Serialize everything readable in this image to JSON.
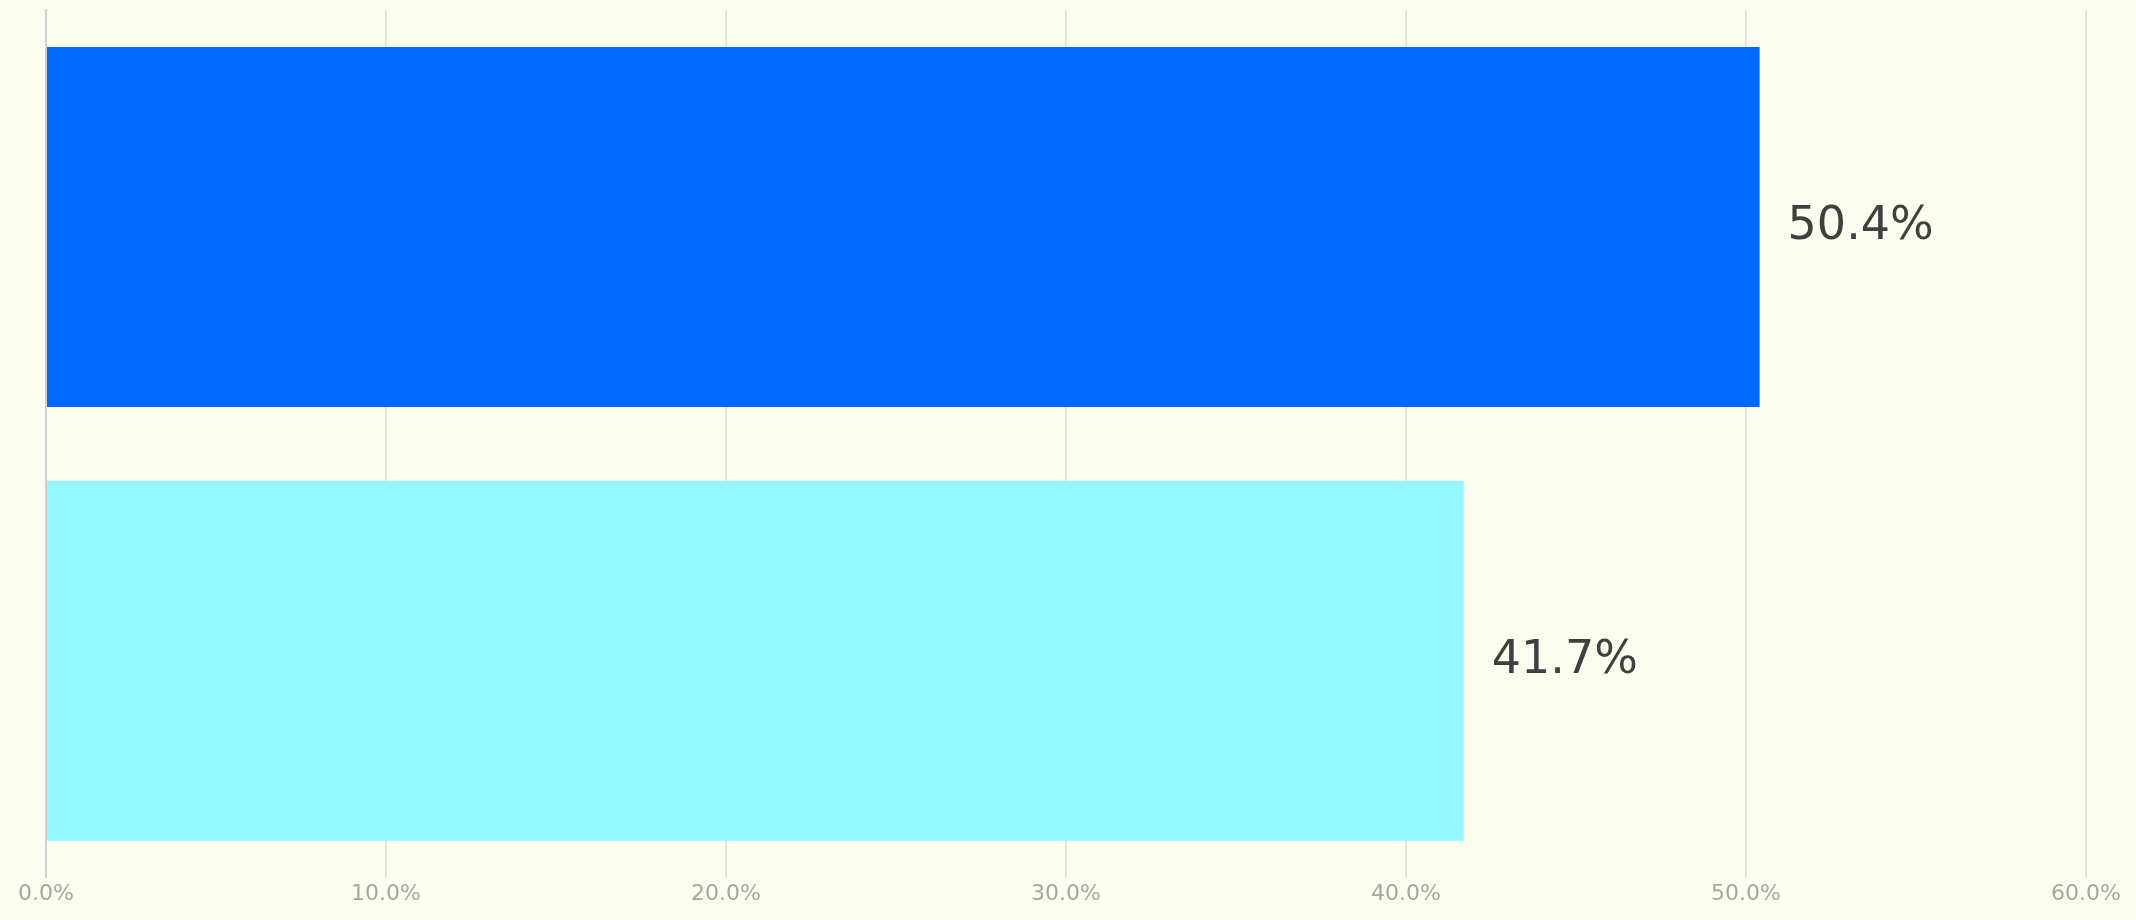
{
  "chart_data": {
    "type": "bar",
    "orientation": "horizontal",
    "categories": [
      null,
      null
    ],
    "values": [
      50.4,
      41.7
    ],
    "colors": [
      "#0069ff",
      "#94f7ff"
    ],
    "value_labels": [
      "50.4%",
      "41.7%"
    ],
    "xlim": [
      0,
      60
    ],
    "xticks": [
      {
        "value": 0,
        "label": "0.0%"
      },
      {
        "value": 10,
        "label": "10.0%"
      },
      {
        "value": 20,
        "label": "20.0%"
      },
      {
        "value": 30,
        "label": "30.0%"
      },
      {
        "value": 40,
        "label": "40.0%"
      },
      {
        "value": 50,
        "label": "50.0%"
      },
      {
        "value": 60,
        "label": "60.0%"
      }
    ],
    "grid": "x",
    "legend": false
  }
}
